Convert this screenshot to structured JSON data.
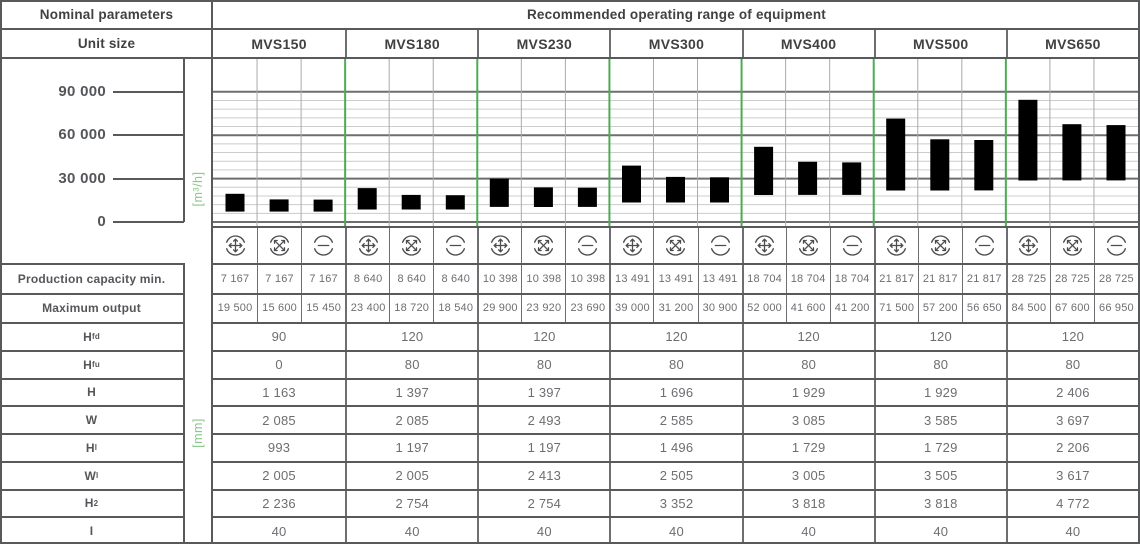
{
  "header": {
    "nominal": "Nominal parameters",
    "recommended": "Recommended operating range of equipment",
    "unit_size": "Unit size",
    "models": [
      "MVS150",
      "MVS180",
      "MVS230",
      "MVS300",
      "MVS400",
      "MVS500",
      "MVS650"
    ]
  },
  "chart_data": {
    "type": "bar",
    "subtype": "floating-range-bars",
    "title": "Recommended operating range of equipment",
    "ylabel": "[m³/h]",
    "yticks": [
      {
        "label": "90 000",
        "value": 90000
      },
      {
        "label": "60 000",
        "value": 60000
      },
      {
        "label": "30 000",
        "value": 30000
      },
      {
        "label": "0",
        "value": 0
      }
    ],
    "ylim": [
      0,
      114000
    ],
    "minor_grid_step": 6000,
    "major_grid_step": 30000,
    "grid": true,
    "legend_position": "none",
    "bar_color": "#4dab52",
    "group_separator_color": "#4dab52",
    "categories": [
      "MVS150",
      "MVS180",
      "MVS230",
      "MVS300",
      "MVS400",
      "MVS500",
      "MVS650"
    ],
    "modes_per_category": [
      "plus",
      "cross",
      "minus"
    ],
    "series": [
      {
        "model": "MVS150",
        "mode": "plus",
        "min": 7167,
        "max": 19500
      },
      {
        "model": "MVS150",
        "mode": "cross",
        "min": 7167,
        "max": 15600
      },
      {
        "model": "MVS150",
        "mode": "minus",
        "min": 7167,
        "max": 15450
      },
      {
        "model": "MVS180",
        "mode": "plus",
        "min": 8640,
        "max": 23400
      },
      {
        "model": "MVS180",
        "mode": "cross",
        "min": 8640,
        "max": 18720
      },
      {
        "model": "MVS180",
        "mode": "minus",
        "min": 8640,
        "max": 18540
      },
      {
        "model": "MVS230",
        "mode": "plus",
        "min": 10398,
        "max": 29900
      },
      {
        "model": "MVS230",
        "mode": "cross",
        "min": 10398,
        "max": 23920
      },
      {
        "model": "MVS230",
        "mode": "minus",
        "min": 10398,
        "max": 23690
      },
      {
        "model": "MVS300",
        "mode": "plus",
        "min": 13491,
        "max": 39000
      },
      {
        "model": "MVS300",
        "mode": "cross",
        "min": 13491,
        "max": 31200
      },
      {
        "model": "MVS300",
        "mode": "minus",
        "min": 13491,
        "max": 30900
      },
      {
        "model": "MVS400",
        "mode": "plus",
        "min": 18704,
        "max": 52000
      },
      {
        "model": "MVS400",
        "mode": "cross",
        "min": 18704,
        "max": 41600
      },
      {
        "model": "MVS400",
        "mode": "minus",
        "min": 18704,
        "max": 41200
      },
      {
        "model": "MVS500",
        "mode": "plus",
        "min": 21817,
        "max": 71500
      },
      {
        "model": "MVS500",
        "mode": "cross",
        "min": 21817,
        "max": 57200
      },
      {
        "model": "MVS500",
        "mode": "minus",
        "min": 21817,
        "max": 56650
      },
      {
        "model": "MVS650",
        "mode": "plus",
        "min": 28725,
        "max": 84500
      },
      {
        "model": "MVS650",
        "mode": "cross",
        "min": 28725,
        "max": 67600
      },
      {
        "model": "MVS650",
        "mode": "minus",
        "min": 28725,
        "max": 66950
      }
    ]
  },
  "rows": {
    "production_min": {
      "label": "Production capacity min.",
      "values": [
        "7 167",
        "7 167",
        "7 167",
        "8 640",
        "8 640",
        "8 640",
        "10 398",
        "10 398",
        "10 398",
        "13 491",
        "13 491",
        "13 491",
        "18 704",
        "18 704",
        "18 704",
        "21 817",
        "21 817",
        "21 817",
        "28 725",
        "28 725",
        "28 725"
      ]
    },
    "maximum_output": {
      "label": "Maximum output",
      "values": [
        "19 500",
        "15 600",
        "15 450",
        "23 400",
        "18 720",
        "18 540",
        "29 900",
        "23 920",
        "23 690",
        "39 000",
        "31 200",
        "30 900",
        "52 000",
        "41 600",
        "41 200",
        "71 500",
        "57 200",
        "56 650",
        "84 500",
        "67 600",
        "66 950"
      ]
    }
  },
  "dimensions": {
    "unit_label": "[mm]",
    "rows": [
      {
        "base": "H",
        "sub": "fd",
        "values": [
          "90",
          "120",
          "120",
          "120",
          "120",
          "120",
          "120"
        ]
      },
      {
        "base": "H",
        "sub": "fu",
        "values": [
          "0",
          "80",
          "80",
          "80",
          "80",
          "80",
          "80"
        ]
      },
      {
        "base": "H",
        "sub": "",
        "values": [
          "1 163",
          "1 397",
          "1 397",
          "1 696",
          "1 929",
          "1 929",
          "2 406"
        ]
      },
      {
        "base": "W",
        "sub": "",
        "values": [
          "2 085",
          "2 085",
          "2 493",
          "2 585",
          "3 085",
          "3 585",
          "3 697"
        ]
      },
      {
        "base": "H",
        "sub": "l",
        "values": [
          "993",
          "1 197",
          "1 197",
          "1 496",
          "1 729",
          "1 729",
          "2 206"
        ]
      },
      {
        "base": "W",
        "sub": "l",
        "values": [
          "2 005",
          "2 005",
          "2 413",
          "2 505",
          "3 005",
          "3 505",
          "3 617"
        ]
      },
      {
        "base": "H",
        "sub": "2",
        "values": [
          "2 236",
          "2 754",
          "2 754",
          "3 352",
          "3 818",
          "3 818",
          "4 772"
        ]
      },
      {
        "base": "I",
        "sub": "",
        "values": [
          "40",
          "40",
          "40",
          "40",
          "40",
          "40",
          "40"
        ]
      }
    ]
  },
  "colors": {
    "accent_green": "#4dab52",
    "green_label": "#8bc88b",
    "border_dark": "#58595b",
    "border_mid": "#6d6e71",
    "grid_minor": "#cccccc",
    "grid_vertical": "#a8aaad",
    "text_dark": "#414042",
    "text_value": "#6d6e71",
    "icon_stroke": "#4d4d4f"
  }
}
